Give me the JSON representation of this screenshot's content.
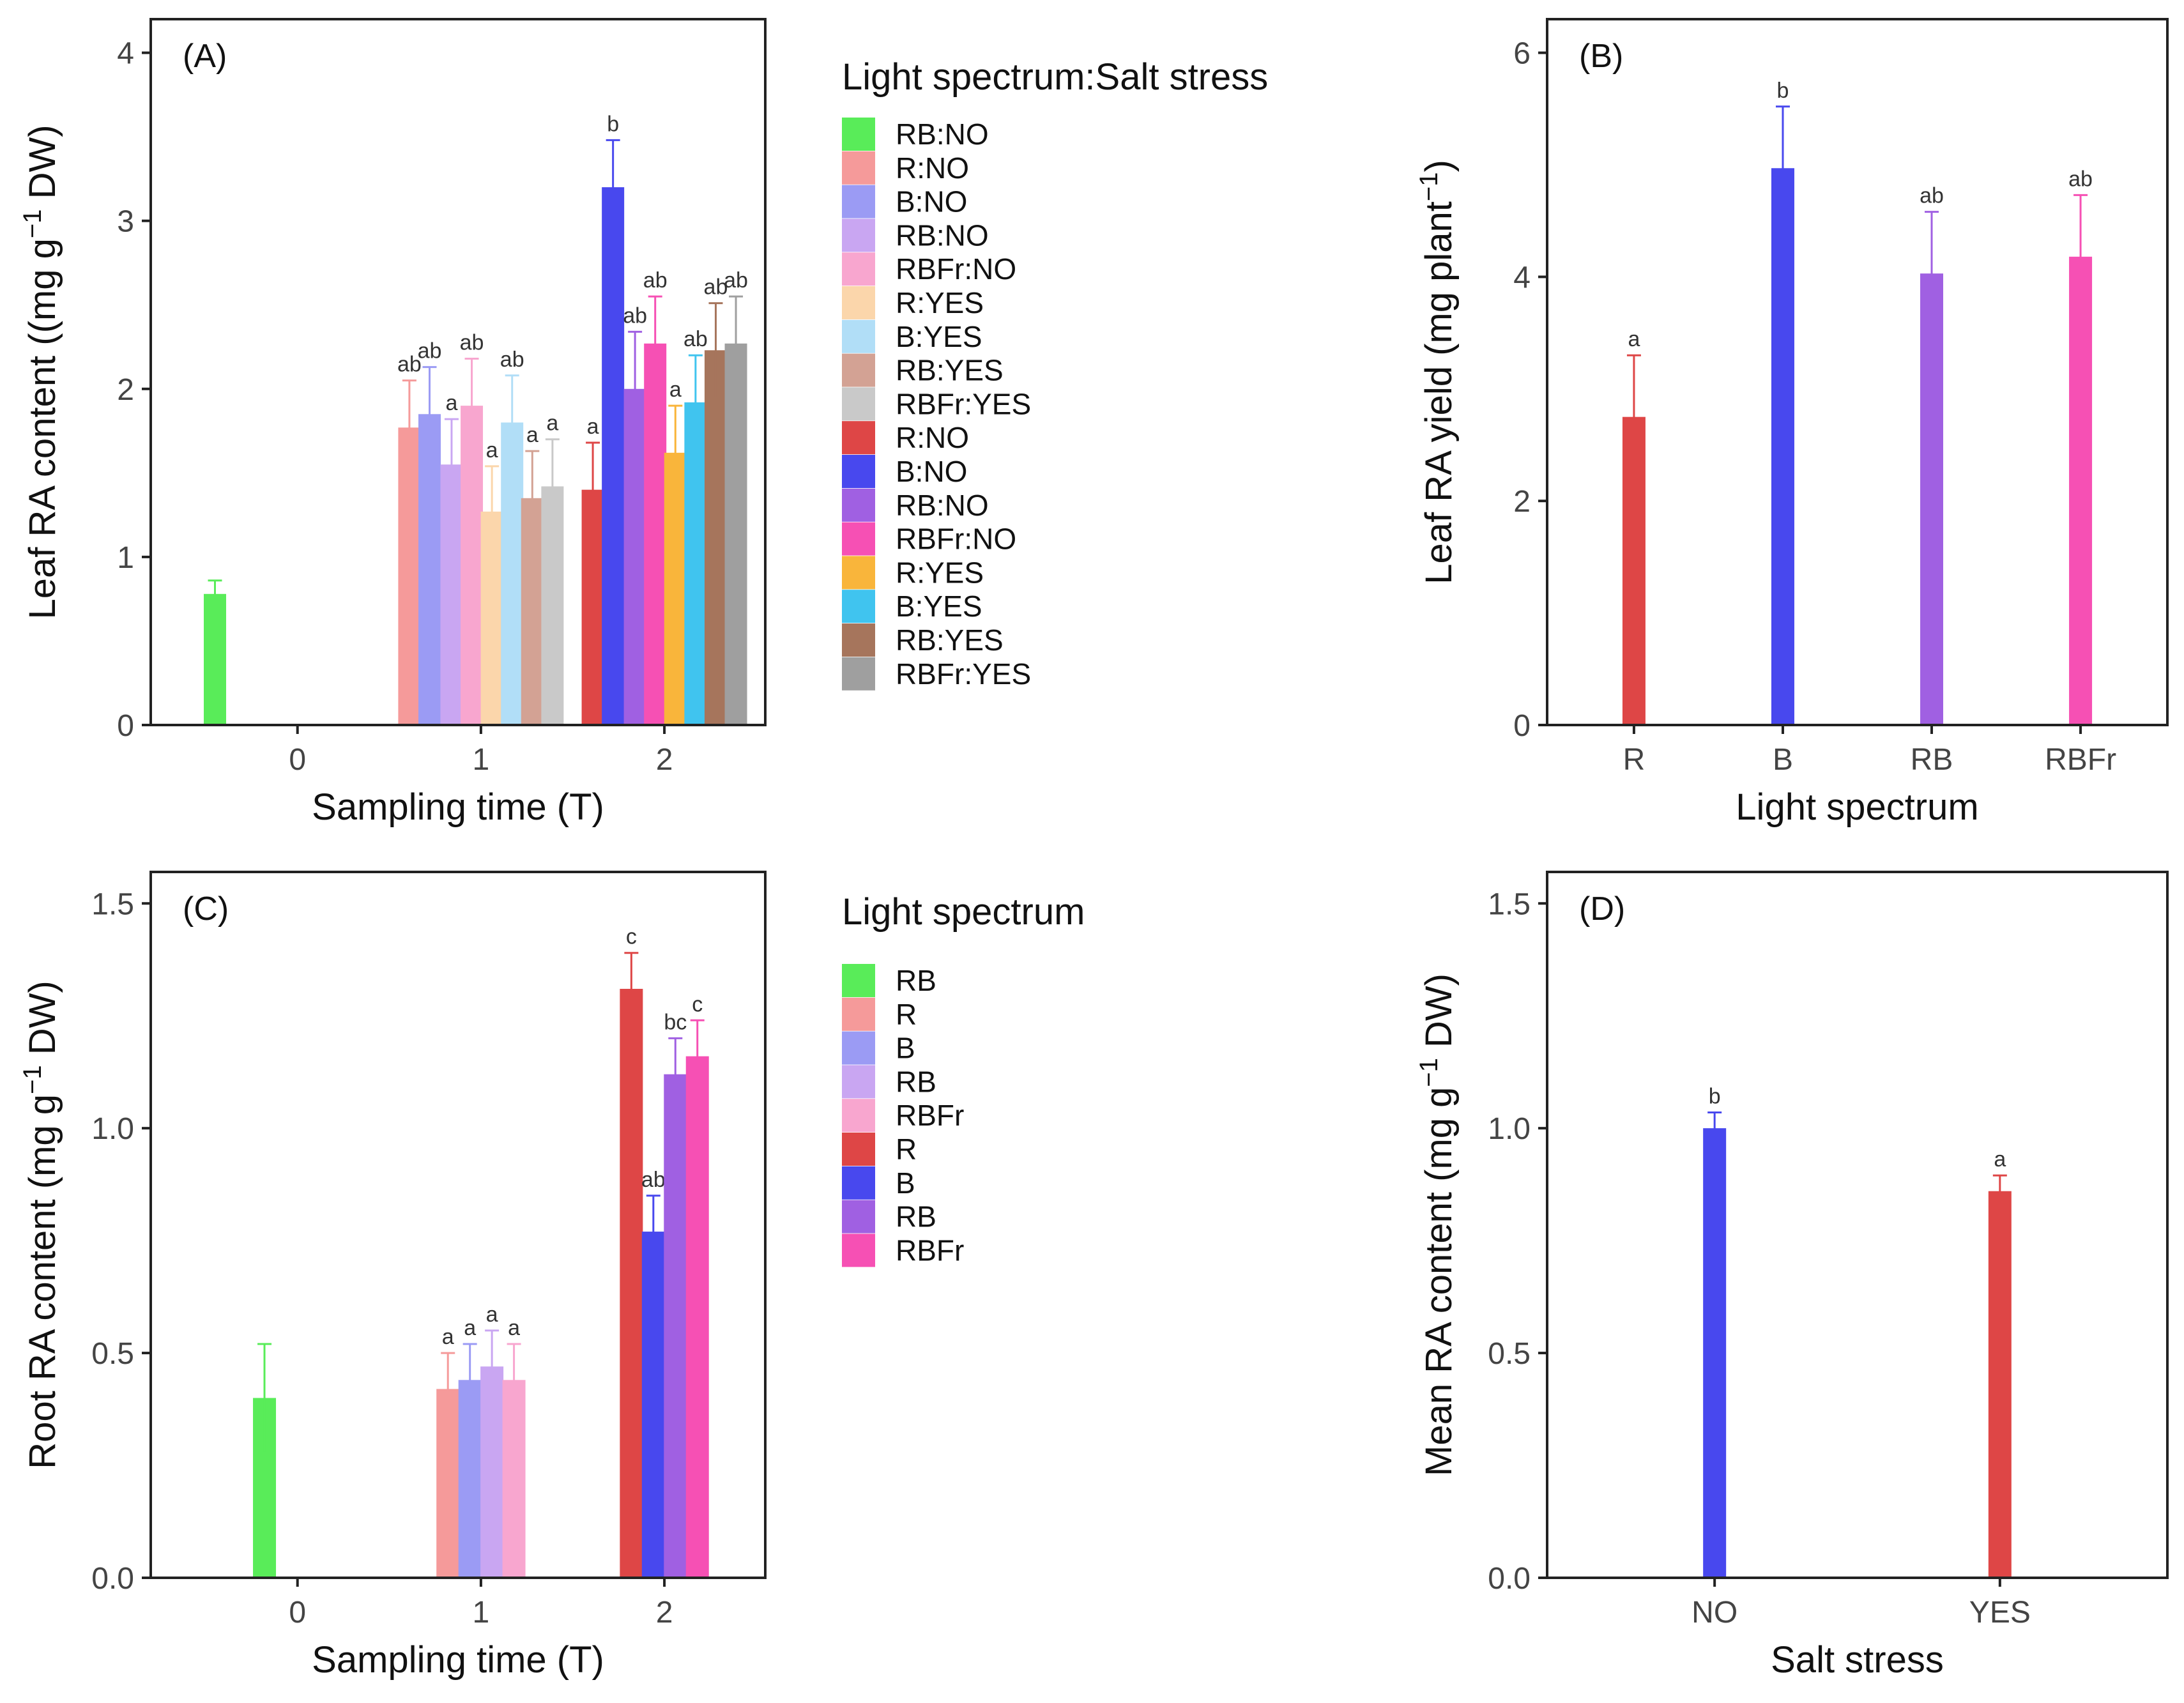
{
  "colors": {
    "axis": "#222222",
    "white": "#ffffff"
  },
  "chart_data": [
    {
      "id": "A",
      "type": "bar",
      "panel_label": "(A)",
      "xlabel": "Sampling time (T)",
      "ylabel": "Leaf RA content ((mg g",
      "ylabel_sup": "−1",
      "ylabel_tail": " DW)",
      "ylim": [
        0,
        4.2
      ],
      "yticks": [
        0,
        1,
        2,
        3,
        4
      ],
      "xticks": [
        0,
        1,
        2
      ],
      "legend_title": "Light spectrum:Salt stress",
      "legend": [
        {
          "label": "RB:NO",
          "color": "#59ec59"
        },
        {
          "label": "R:NO",
          "color": "#f59a9a"
        },
        {
          "label": "B:NO",
          "color": "#9b9bf4"
        },
        {
          "label": "RB:NO",
          "color": "#c9a6f2"
        },
        {
          "label": "RBFr:NO",
          "color": "#f8a6cf"
        },
        {
          "label": "R:YES",
          "color": "#fbd6ab"
        },
        {
          "label": "B:YES",
          "color": "#b1def7"
        },
        {
          "label": "RB:YES",
          "color": "#d3a294"
        },
        {
          "label": "RBFr:YES",
          "color": "#c9c9c9"
        },
        {
          "label": "R:NO",
          "color": "#de4646"
        },
        {
          "label": "B:NO",
          "color": "#4848ee"
        },
        {
          "label": "RB:NO",
          "color": "#a060e2"
        },
        {
          "label": "RBFr:NO",
          "color": "#f650b4"
        },
        {
          "label": "R:YES",
          "color": "#f9b53b"
        },
        {
          "label": "B:YES",
          "color": "#40c4ef"
        },
        {
          "label": "RB:YES",
          "color": "#a6755c"
        },
        {
          "label": "RBFr:YES",
          "color": "#9f9f9f"
        }
      ],
      "bars": [
        {
          "x": -0.45,
          "value": 0.78,
          "err": 0.08,
          "sig": "",
          "color": "#59ec59"
        },
        {
          "x": 0.61,
          "value": 1.77,
          "err": 0.28,
          "sig": "ab",
          "color": "#f59a9a"
        },
        {
          "x": 0.72,
          "value": 1.85,
          "err": 0.28,
          "sig": "ab",
          "color": "#9b9bf4"
        },
        {
          "x": 0.84,
          "value": 1.55,
          "err": 0.27,
          "sig": "a",
          "color": "#c9a6f2"
        },
        {
          "x": 0.95,
          "value": 1.9,
          "err": 0.28,
          "sig": "ab",
          "color": "#f8a6cf"
        },
        {
          "x": 1.06,
          "value": 1.27,
          "err": 0.27,
          "sig": "a",
          "color": "#fbd6ab"
        },
        {
          "x": 1.17,
          "value": 1.8,
          "err": 0.28,
          "sig": "ab",
          "color": "#b1def7"
        },
        {
          "x": 1.28,
          "value": 1.35,
          "err": 0.28,
          "sig": "a",
          "color": "#d3a294"
        },
        {
          "x": 1.39,
          "value": 1.42,
          "err": 0.28,
          "sig": "a",
          "color": "#c9c9c9"
        },
        {
          "x": 1.61,
          "value": 1.4,
          "err": 0.28,
          "sig": "a",
          "color": "#de4646"
        },
        {
          "x": 1.72,
          "value": 3.2,
          "err": 0.28,
          "sig": "b",
          "color": "#4848ee"
        },
        {
          "x": 1.84,
          "value": 2.0,
          "err": 0.34,
          "sig": "ab",
          "color": "#a060e2"
        },
        {
          "x": 1.95,
          "value": 2.27,
          "err": 0.28,
          "sig": "ab",
          "color": "#f650b4"
        },
        {
          "x": 2.06,
          "value": 1.62,
          "err": 0.28,
          "sig": "a",
          "color": "#f9b53b"
        },
        {
          "x": 2.17,
          "value": 1.92,
          "err": 0.28,
          "sig": "ab",
          "color": "#40c4ef"
        },
        {
          "x": 2.28,
          "value": 2.23,
          "err": 0.28,
          "sig": "ab",
          "color": "#a6755c"
        },
        {
          "x": 2.39,
          "value": 2.27,
          "err": 0.28,
          "sig": "ab",
          "color": "#9f9f9f"
        }
      ]
    },
    {
      "id": "B",
      "type": "bar",
      "panel_label": "(B)",
      "xlabel": "Light spectrum",
      "ylabel": "Leaf RA yield (mg plant",
      "ylabel_sup": "−1",
      "ylabel_tail": ")",
      "ylim": [
        0,
        6.3
      ],
      "yticks": [
        0,
        2,
        4,
        6
      ],
      "categories": [
        "R",
        "B",
        "RB",
        "RBFr"
      ],
      "bars": [
        {
          "category": "R",
          "value": 2.75,
          "err": 0.55,
          "sig": "a",
          "color": "#de4646"
        },
        {
          "category": "B",
          "value": 4.97,
          "err": 0.55,
          "sig": "b",
          "color": "#4848ee"
        },
        {
          "category": "RB",
          "value": 4.03,
          "err": 0.55,
          "sig": "ab",
          "color": "#a060e2"
        },
        {
          "category": "RBFr",
          "value": 4.18,
          "err": 0.55,
          "sig": "ab",
          "color": "#f650b4"
        }
      ]
    },
    {
      "id": "C",
      "type": "bar",
      "panel_label": "(C)",
      "xlabel": "Sampling time (T)",
      "ylabel": "Root RA content (mg g",
      "ylabel_sup": "−1",
      "ylabel_tail": " DW)",
      "ylim": [
        0,
        1.57
      ],
      "yticks": [
        0.0,
        0.5,
        1.0,
        1.5
      ],
      "xticks": [
        0,
        1,
        2
      ],
      "legend_title": "Light spectrum",
      "legend": [
        {
          "label": "RB",
          "color": "#59ec59"
        },
        {
          "label": "R",
          "color": "#f59a9a"
        },
        {
          "label": "B",
          "color": "#9b9bf4"
        },
        {
          "label": "RB",
          "color": "#c9a6f2"
        },
        {
          "label": "RBFr",
          "color": "#f8a6cf"
        },
        {
          "label": "R",
          "color": "#de4646"
        },
        {
          "label": "B",
          "color": "#4848ee"
        },
        {
          "label": "RB",
          "color": "#a060e2"
        },
        {
          "label": "RBFr",
          "color": "#f650b4"
        }
      ],
      "bars": [
        {
          "x": -0.18,
          "value": 0.4,
          "err": 0.12,
          "sig": "",
          "color": "#59ec59"
        },
        {
          "x": 0.82,
          "value": 0.42,
          "err": 0.08,
          "sig": "a",
          "color": "#f59a9a"
        },
        {
          "x": 0.94,
          "value": 0.44,
          "err": 0.08,
          "sig": "a",
          "color": "#9b9bf4"
        },
        {
          "x": 1.06,
          "value": 0.47,
          "err": 0.08,
          "sig": "a",
          "color": "#c9a6f2"
        },
        {
          "x": 1.18,
          "value": 0.44,
          "err": 0.08,
          "sig": "a",
          "color": "#f8a6cf"
        },
        {
          "x": 1.82,
          "value": 1.31,
          "err": 0.08,
          "sig": "c",
          "color": "#de4646"
        },
        {
          "x": 1.94,
          "value": 0.77,
          "err": 0.08,
          "sig": "ab",
          "color": "#4848ee"
        },
        {
          "x": 2.06,
          "value": 1.12,
          "err": 0.08,
          "sig": "bc",
          "color": "#a060e2"
        },
        {
          "x": 2.18,
          "value": 1.16,
          "err": 0.08,
          "sig": "c",
          "color": "#f650b4"
        }
      ]
    },
    {
      "id": "D",
      "type": "bar",
      "panel_label": "(D)",
      "xlabel": "Salt stress",
      "ylabel": "Mean RA content (mg g",
      "ylabel_sup": "−1",
      "ylabel_tail": " DW)",
      "ylim": [
        0,
        1.57
      ],
      "yticks": [
        0.0,
        0.5,
        1.0,
        1.5
      ],
      "categories": [
        "NO",
        "YES"
      ],
      "bars": [
        {
          "category": "NO",
          "value": 1.0,
          "err": 0.035,
          "sig": "b",
          "color": "#4848ee"
        },
        {
          "category": "YES",
          "value": 0.86,
          "err": 0.035,
          "sig": "a",
          "color": "#de4646"
        }
      ]
    }
  ]
}
